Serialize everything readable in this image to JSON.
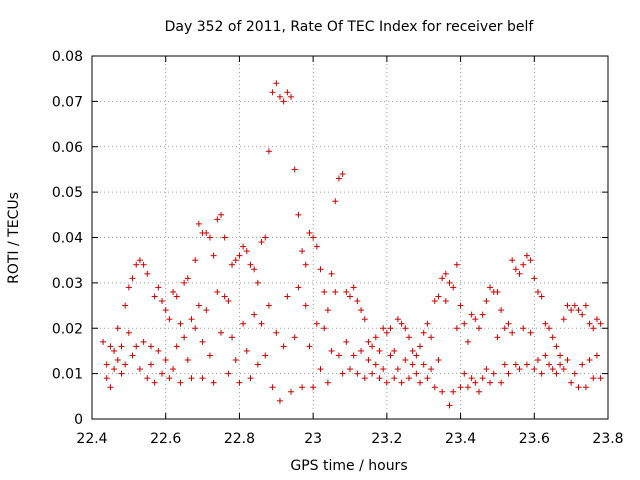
{
  "chart_data": {
    "type": "scatter",
    "title": "Day 352 of 2011, Rate Of TEC Index for receiver belf",
    "xlabel": "GPS time / hours",
    "ylabel": "ROTI / TECUs",
    "xlim": [
      22.4,
      23.8
    ],
    "ylim": [
      0,
      0.08
    ],
    "xticks": [
      "22.4",
      "22.6",
      "22.8",
      "23",
      "23.2",
      "23.4",
      "23.6",
      "23.8"
    ],
    "yticks": [
      "0",
      "0.01",
      "0.02",
      "0.03",
      "0.04",
      "0.05",
      "0.06",
      "0.07",
      "0.08"
    ],
    "grid": true,
    "marker": "+",
    "color": "#cc0000",
    "series": [
      {
        "points": [
          [
            22.43,
            0.017
          ],
          [
            22.44,
            0.012
          ],
          [
            22.44,
            0.009
          ],
          [
            22.45,
            0.016
          ],
          [
            22.45,
            0.007
          ],
          [
            22.46,
            0.015
          ],
          [
            22.46,
            0.011
          ],
          [
            22.47,
            0.02
          ],
          [
            22.47,
            0.013
          ],
          [
            22.48,
            0.016
          ],
          [
            22.48,
            0.01
          ],
          [
            22.49,
            0.025
          ],
          [
            22.49,
            0.012
          ],
          [
            22.5,
            0.029
          ],
          [
            22.5,
            0.019
          ],
          [
            22.51,
            0.031
          ],
          [
            22.51,
            0.014
          ],
          [
            22.52,
            0.034
          ],
          [
            22.52,
            0.016
          ],
          [
            22.53,
            0.035
          ],
          [
            22.53,
            0.011
          ],
          [
            22.54,
            0.034
          ],
          [
            22.54,
            0.017
          ],
          [
            22.55,
            0.032
          ],
          [
            22.55,
            0.009
          ],
          [
            22.56,
            0.016
          ],
          [
            22.56,
            0.012
          ],
          [
            22.57,
            0.027
          ],
          [
            22.57,
            0.008
          ],
          [
            22.58,
            0.029
          ],
          [
            22.58,
            0.015
          ],
          [
            22.59,
            0.026
          ],
          [
            22.59,
            0.01
          ],
          [
            22.6,
            0.024
          ],
          [
            22.6,
            0.013
          ],
          [
            22.61,
            0.022
          ],
          [
            22.61,
            0.009
          ],
          [
            22.62,
            0.028
          ],
          [
            22.62,
            0.011
          ],
          [
            22.63,
            0.027
          ],
          [
            22.63,
            0.016
          ],
          [
            22.64,
            0.021
          ],
          [
            22.64,
            0.008
          ],
          [
            22.65,
            0.03
          ],
          [
            22.65,
            0.018
          ],
          [
            22.66,
            0.031
          ],
          [
            22.66,
            0.013
          ],
          [
            22.67,
            0.022
          ],
          [
            22.67,
            0.009
          ],
          [
            22.68,
            0.035
          ],
          [
            22.68,
            0.02
          ],
          [
            22.69,
            0.043
          ],
          [
            22.69,
            0.025
          ],
          [
            22.7,
            0.041
          ],
          [
            22.7,
            0.017
          ],
          [
            22.7,
            0.009
          ],
          [
            22.71,
            0.041
          ],
          [
            22.71,
            0.024
          ],
          [
            22.72,
            0.04
          ],
          [
            22.72,
            0.014
          ],
          [
            22.73,
            0.036
          ],
          [
            22.73,
            0.008
          ],
          [
            22.74,
            0.044
          ],
          [
            22.74,
            0.028
          ],
          [
            22.75,
            0.045
          ],
          [
            22.75,
            0.019
          ],
          [
            22.76,
            0.04
          ],
          [
            22.76,
            0.027
          ],
          [
            22.77,
            0.026
          ],
          [
            22.77,
            0.01
          ],
          [
            22.78,
            0.034
          ],
          [
            22.78,
            0.018
          ],
          [
            22.79,
            0.035
          ],
          [
            22.79,
            0.013
          ],
          [
            22.8,
            0.036
          ],
          [
            22.8,
            0.008
          ],
          [
            22.81,
            0.038
          ],
          [
            22.81,
            0.021
          ],
          [
            22.82,
            0.037
          ],
          [
            22.82,
            0.015
          ],
          [
            22.83,
            0.034
          ],
          [
            22.83,
            0.009
          ],
          [
            22.84,
            0.033
          ],
          [
            22.84,
            0.023
          ],
          [
            22.85,
            0.03
          ],
          [
            22.85,
            0.012
          ],
          [
            22.86,
            0.039
          ],
          [
            22.86,
            0.021
          ],
          [
            22.87,
            0.04
          ],
          [
            22.87,
            0.014
          ],
          [
            22.88,
            0.059
          ],
          [
            22.88,
            0.025
          ],
          [
            22.89,
            0.072
          ],
          [
            22.89,
            0.007
          ],
          [
            22.9,
            0.074
          ],
          [
            22.9,
            0.019
          ],
          [
            22.91,
            0.071
          ],
          [
            22.91,
            0.004
          ],
          [
            22.92,
            0.07
          ],
          [
            22.92,
            0.016
          ],
          [
            22.93,
            0.072
          ],
          [
            22.93,
            0.027
          ],
          [
            22.94,
            0.071
          ],
          [
            22.94,
            0.006
          ],
          [
            22.95,
            0.055
          ],
          [
            22.95,
            0.018
          ],
          [
            22.96,
            0.045
          ],
          [
            22.96,
            0.029
          ],
          [
            22.97,
            0.037
          ],
          [
            22.97,
            0.007
          ],
          [
            22.98,
            0.034
          ],
          [
            22.98,
            0.025
          ],
          [
            22.99,
            0.041
          ],
          [
            22.99,
            0.016
          ],
          [
            23.0,
            0.04
          ],
          [
            23.0,
            0.007
          ],
          [
            23.01,
            0.038
          ],
          [
            23.01,
            0.021
          ],
          [
            23.02,
            0.033
          ],
          [
            23.02,
            0.011
          ],
          [
            23.03,
            0.028
          ],
          [
            23.03,
            0.02
          ],
          [
            23.04,
            0.024
          ],
          [
            23.04,
            0.008
          ],
          [
            23.05,
            0.032
          ],
          [
            23.05,
            0.015
          ],
          [
            23.06,
            0.048
          ],
          [
            23.06,
            0.028
          ],
          [
            23.07,
            0.053
          ],
          [
            23.07,
            0.014
          ],
          [
            23.08,
            0.054
          ],
          [
            23.08,
            0.01
          ],
          [
            23.09,
            0.028
          ],
          [
            23.09,
            0.017
          ],
          [
            23.1,
            0.027
          ],
          [
            23.1,
            0.011
          ],
          [
            23.11,
            0.029
          ],
          [
            23.11,
            0.014
          ],
          [
            23.12,
            0.026
          ],
          [
            23.12,
            0.01
          ],
          [
            23.13,
            0.024
          ],
          [
            23.13,
            0.015
          ],
          [
            23.14,
            0.022
          ],
          [
            23.14,
            0.009
          ],
          [
            23.15,
            0.017
          ],
          [
            23.15,
            0.013
          ],
          [
            23.16,
            0.016
          ],
          [
            23.16,
            0.01
          ],
          [
            23.17,
            0.018
          ],
          [
            23.17,
            0.012
          ],
          [
            23.18,
            0.015
          ],
          [
            23.18,
            0.009
          ],
          [
            23.19,
            0.02
          ],
          [
            23.19,
            0.011
          ],
          [
            23.2,
            0.019
          ],
          [
            23.2,
            0.008
          ],
          [
            23.21,
            0.02
          ],
          [
            23.21,
            0.014
          ],
          [
            23.22,
            0.015
          ],
          [
            23.22,
            0.009
          ],
          [
            23.23,
            0.022
          ],
          [
            23.23,
            0.011
          ],
          [
            23.24,
            0.021
          ],
          [
            23.24,
            0.008
          ],
          [
            23.25,
            0.02
          ],
          [
            23.25,
            0.013
          ],
          [
            23.26,
            0.018
          ],
          [
            23.26,
            0.009
          ],
          [
            23.27,
            0.015
          ],
          [
            23.27,
            0.012
          ],
          [
            23.28,
            0.014
          ],
          [
            23.28,
            0.01
          ],
          [
            23.29,
            0.016
          ],
          [
            23.29,
            0.008
          ],
          [
            23.3,
            0.019
          ],
          [
            23.3,
            0.012
          ],
          [
            23.31,
            0.021
          ],
          [
            23.31,
            0.009
          ],
          [
            23.32,
            0.018
          ],
          [
            23.32,
            0.011
          ],
          [
            23.33,
            0.026
          ],
          [
            23.33,
            0.007
          ],
          [
            23.34,
            0.027
          ],
          [
            23.34,
            0.013
          ],
          [
            23.35,
            0.031
          ],
          [
            23.35,
            0.006
          ],
          [
            23.36,
            0.032
          ],
          [
            23.36,
            0.026
          ],
          [
            23.37,
            0.03
          ],
          [
            23.37,
            0.003
          ],
          [
            23.38,
            0.029
          ],
          [
            23.38,
            0.006
          ],
          [
            23.39,
            0.034
          ],
          [
            23.39,
            0.02
          ],
          [
            23.4,
            0.025
          ],
          [
            23.4,
            0.007
          ],
          [
            23.41,
            0.021
          ],
          [
            23.41,
            0.01
          ],
          [
            23.42,
            0.017
          ],
          [
            23.42,
            0.007
          ],
          [
            23.43,
            0.023
          ],
          [
            23.43,
            0.009
          ],
          [
            23.44,
            0.022
          ],
          [
            23.44,
            0.008
          ],
          [
            23.45,
            0.02
          ],
          [
            23.45,
            0.006
          ],
          [
            23.46,
            0.023
          ],
          [
            23.46,
            0.009
          ],
          [
            23.47,
            0.026
          ],
          [
            23.47,
            0.011
          ],
          [
            23.48,
            0.029
          ],
          [
            23.48,
            0.008
          ],
          [
            23.49,
            0.028
          ],
          [
            23.49,
            0.01
          ],
          [
            23.5,
            0.028
          ],
          [
            23.5,
            0.018
          ],
          [
            23.51,
            0.024
          ],
          [
            23.51,
            0.008
          ],
          [
            23.52,
            0.02
          ],
          [
            23.52,
            0.012
          ],
          [
            23.53,
            0.021
          ],
          [
            23.53,
            0.01
          ],
          [
            23.54,
            0.035
          ],
          [
            23.54,
            0.019
          ],
          [
            23.55,
            0.033
          ],
          [
            23.55,
            0.012
          ],
          [
            23.56,
            0.032
          ],
          [
            23.56,
            0.011
          ],
          [
            23.57,
            0.034
          ],
          [
            23.57,
            0.02
          ],
          [
            23.58,
            0.036
          ],
          [
            23.58,
            0.012
          ],
          [
            23.59,
            0.035
          ],
          [
            23.59,
            0.019
          ],
          [
            23.6,
            0.031
          ],
          [
            23.6,
            0.011
          ],
          [
            23.61,
            0.028
          ],
          [
            23.61,
            0.013
          ],
          [
            23.62,
            0.027
          ],
          [
            23.62,
            0.01
          ],
          [
            23.63,
            0.021
          ],
          [
            23.63,
            0.014
          ],
          [
            23.64,
            0.02
          ],
          [
            23.64,
            0.012
          ],
          [
            23.65,
            0.018
          ],
          [
            23.65,
            0.011
          ],
          [
            23.66,
            0.016
          ],
          [
            23.66,
            0.01
          ],
          [
            23.67,
            0.014
          ],
          [
            23.67,
            0.012
          ],
          [
            23.68,
            0.022
          ],
          [
            23.68,
            0.011
          ],
          [
            23.69,
            0.025
          ],
          [
            23.69,
            0.013
          ],
          [
            23.7,
            0.024
          ],
          [
            23.7,
            0.008
          ],
          [
            23.71,
            0.025
          ],
          [
            23.71,
            0.01
          ],
          [
            23.72,
            0.024
          ],
          [
            23.72,
            0.007
          ],
          [
            23.73,
            0.023
          ],
          [
            23.73,
            0.012
          ],
          [
            23.74,
            0.025
          ],
          [
            23.74,
            0.007
          ],
          [
            23.75,
            0.021
          ],
          [
            23.75,
            0.013
          ],
          [
            23.76,
            0.02
          ],
          [
            23.76,
            0.009
          ],
          [
            23.77,
            0.022
          ],
          [
            23.77,
            0.014
          ],
          [
            23.78,
            0.021
          ],
          [
            23.78,
            0.009
          ]
        ]
      }
    ]
  }
}
